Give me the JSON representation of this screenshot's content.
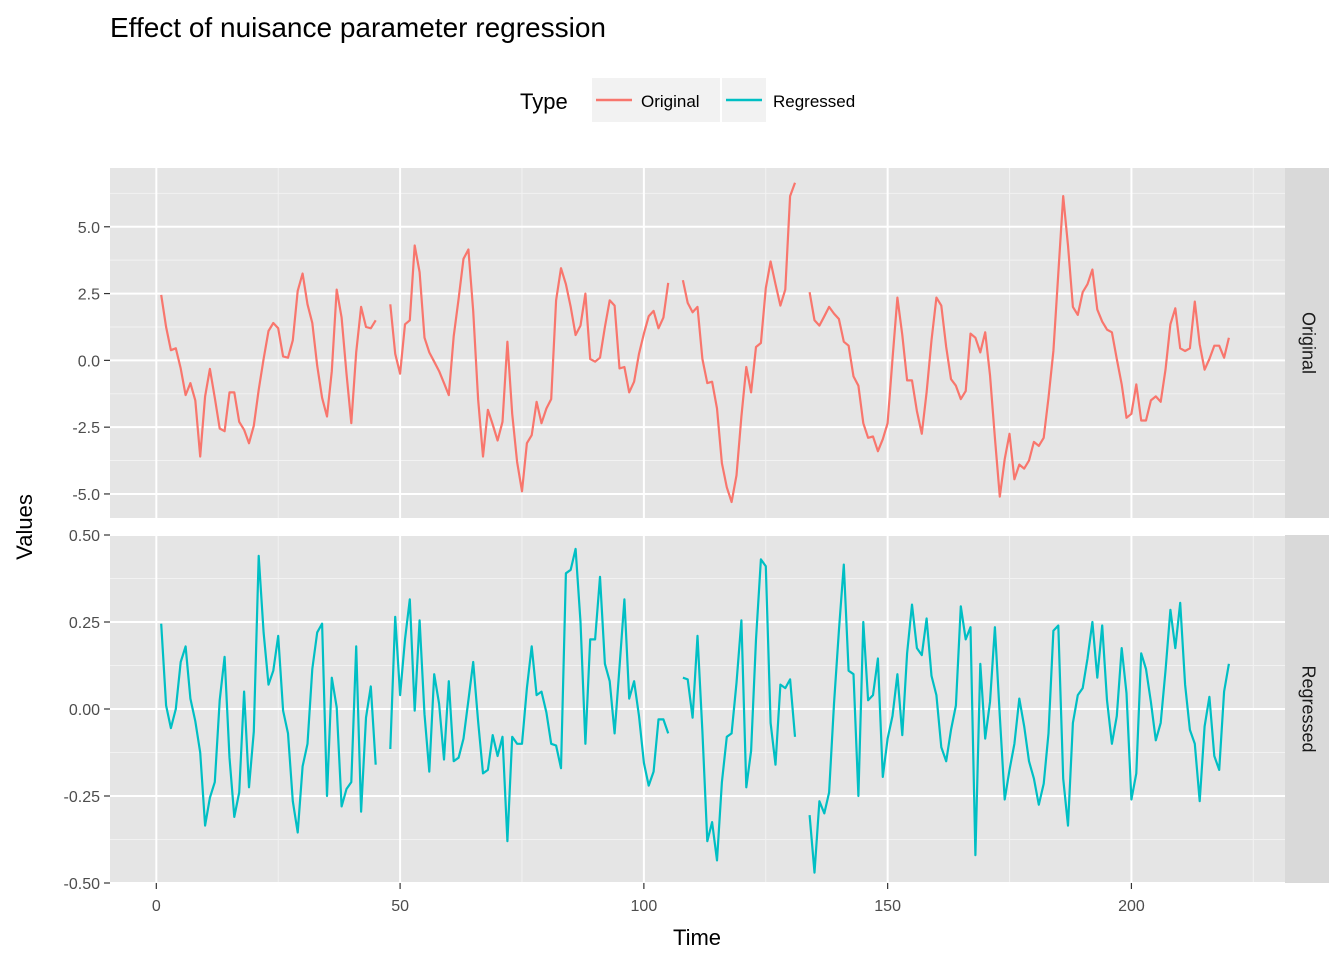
{
  "chart_data": {
    "type": "line",
    "title": "Effect of nuisance parameter regression",
    "xlabel": "Time",
    "ylabel": "Values",
    "legend": {
      "title": "Type",
      "placement": "top",
      "entries": [
        {
          "label": "Original",
          "color": "#F8766D"
        },
        {
          "label": "Regressed",
          "color": "#00BFC4"
        }
      ]
    },
    "grid": true,
    "background": "#e5e5e5",
    "xlim": [
      -9.5,
      231.5
    ],
    "x_ticks": [
      0,
      50,
      100,
      150,
      200
    ],
    "x_tick_labels": [
      "0",
      "50",
      "100",
      "150",
      "200"
    ],
    "panels": [
      {
        "strip_label": "Original",
        "series_name": "Original",
        "color": "#F8766D",
        "ylim": [
          -5.9,
          7.2
        ],
        "y_ticks": [
          -5,
          -2.5,
          0,
          2.5,
          5
        ],
        "y_tick_labels": [
          "-5.0",
          "-2.5",
          "0.0",
          "2.5",
          "5.0"
        ],
        "segments": [
          {
            "x_start": 1,
            "values": [
              2.45,
              1.25,
              0.38,
              0.45,
              -0.3,
              -1.3,
              -0.85,
              -1.5,
              -3.6,
              -1.35,
              -0.32,
              -1.4,
              -2.55,
              -2.65,
              -1.2,
              -1.2,
              -2.3,
              -2.6,
              -3.1,
              -2.45,
              -1.1,
              0.05,
              1.1,
              1.4,
              1.2,
              0.15,
              0.1,
              0.75,
              2.6,
              3.25,
              2.1,
              1.4,
              -0.2,
              -1.4,
              -2.1,
              -0.4,
              2.65,
              1.6,
              -0.5,
              -2.35,
              0.3,
              2.0,
              1.25,
              1.2,
              1.5
            ]
          },
          {
            "x_start": 48,
            "values": [
              2.1,
              0.25,
              -0.5,
              1.35,
              1.5,
              4.3,
              3.3,
              0.85,
              0.3,
              -0.05,
              -0.4,
              -0.85,
              -1.3,
              0.9,
              2.3,
              3.8,
              4.15,
              1.85,
              -1.45,
              -3.6,
              -1.85,
              -2.4,
              -3.0,
              -2.3,
              0.7,
              -2.0,
              -3.8,
              -4.9,
              -3.1,
              -2.8,
              -1.55,
              -2.35,
              -1.8,
              -1.45,
              2.25,
              3.45,
              2.85,
              2.0,
              0.95,
              1.3,
              2.5,
              0.05,
              -0.05,
              0.1,
              1.25,
              2.25,
              2.05,
              -0.3,
              -0.25,
              -1.2,
              -0.8,
              0.25,
              1.0,
              1.65,
              1.85,
              1.2,
              1.6,
              2.9
            ]
          },
          {
            "x_start": 108,
            "values": [
              3.0,
              2.15,
              1.8,
              2.0,
              0.05,
              -0.85,
              -0.8,
              -1.8,
              -3.85,
              -4.75,
              -5.3,
              -4.3,
              -2.1,
              -0.25,
              -1.2,
              0.5,
              0.65,
              2.7,
              3.7,
              2.85,
              2.05,
              2.65,
              6.15,
              6.65
            ]
          },
          {
            "x_start": 134,
            "values": [
              2.55,
              1.5,
              1.3,
              1.65,
              2.0,
              1.75,
              1.55,
              0.7,
              0.55,
              -0.6,
              -0.95,
              -2.35,
              -2.9,
              -2.85,
              -3.4,
              -2.95,
              -2.35,
              0.05,
              2.35,
              0.95,
              -0.75,
              -0.75,
              -1.9,
              -2.75,
              -1.2,
              0.75,
              2.35,
              2.05,
              0.5,
              -0.7,
              -0.95,
              -1.45,
              -1.15,
              1.0,
              0.85,
              0.3,
              1.05,
              -0.55,
              -2.9,
              -5.1,
              -3.7,
              -2.75,
              -4.45,
              -3.9,
              -4.05,
              -3.75,
              -3.05,
              -3.2,
              -2.9,
              -1.4,
              0.35,
              3.25,
              6.15,
              4.3,
              2.0,
              1.7,
              2.55,
              2.85,
              3.4,
              1.9,
              1.45,
              1.15,
              1.05,
              0.05,
              -0.9,
              -2.15,
              -2.0,
              -0.9,
              -2.25,
              -2.25,
              -1.5,
              -1.35,
              -1.55,
              -0.35,
              1.35,
              1.95,
              0.45,
              0.35,
              0.45,
              2.2,
              0.6,
              -0.35,
              0.05,
              0.55,
              0.55,
              0.1,
              0.85
            ]
          }
        ]
      },
      {
        "strip_label": "Regressed",
        "series_name": "Regressed",
        "color": "#00BFC4",
        "ylim": [
          -0.5,
          0.5
        ],
        "y_ticks": [
          -0.5,
          -0.25,
          0,
          0.25,
          0.5
        ],
        "y_tick_labels": [
          "-0.50",
          "-0.25",
          "0.00",
          "0.25",
          "0.50"
        ],
        "segments": [
          {
            "x_start": 1,
            "values": [
              0.245,
              0.01,
              -0.055,
              0.0,
              0.135,
              0.18,
              0.03,
              -0.035,
              -0.125,
              -0.335,
              -0.255,
              -0.21,
              0.025,
              0.15,
              -0.14,
              -0.31,
              -0.24,
              0.05,
              -0.225,
              -0.065,
              0.44,
              0.22,
              0.07,
              0.11,
              0.21,
              -0.005,
              -0.07,
              -0.265,
              -0.355,
              -0.165,
              -0.1,
              0.115,
              0.22,
              0.245,
              -0.25,
              0.09,
              0.005,
              -0.28,
              -0.23,
              -0.21,
              0.18,
              -0.295,
              -0.025,
              0.065,
              -0.16
            ]
          },
          {
            "x_start": 48,
            "values": [
              -0.115,
              0.265,
              0.04,
              0.2,
              0.315,
              -0.005,
              0.255,
              -0.015,
              -0.18,
              0.1,
              0.015,
              -0.145,
              0.08,
              -0.15,
              -0.14,
              -0.085,
              0.025,
              0.135,
              -0.035,
              -0.185,
              -0.175,
              -0.075,
              -0.135,
              -0.08,
              -0.38,
              -0.08,
              -0.1,
              -0.1,
              0.06,
              0.18,
              0.04,
              0.05,
              -0.01,
              -0.1,
              -0.105,
              -0.17,
              0.39,
              0.4,
              0.46,
              0.25,
              -0.1,
              0.2,
              0.2,
              0.38,
              0.13,
              0.08,
              -0.07,
              0.12,
              0.315,
              0.03,
              0.08,
              -0.02,
              -0.155,
              -0.22,
              -0.18,
              -0.03,
              -0.03,
              -0.07
            ]
          },
          {
            "x_start": 108,
            "values": [
              0.09,
              0.085,
              -0.025,
              0.21,
              -0.065,
              -0.38,
              -0.325,
              -0.435,
              -0.21,
              -0.08,
              -0.07,
              0.075,
              0.255,
              -0.225,
              -0.12,
              0.2,
              0.43,
              0.41,
              -0.04,
              -0.16,
              0.07,
              0.06,
              0.085,
              -0.08
            ]
          },
          {
            "x_start": 134,
            "values": [
              -0.305,
              -0.47,
              -0.265,
              -0.3,
              -0.24,
              0.015,
              0.225,
              0.415,
              0.11,
              0.1,
              -0.25,
              0.25,
              0.025,
              0.04,
              0.145,
              -0.195,
              -0.085,
              -0.02,
              0.1,
              -0.075,
              0.16,
              0.3,
              0.175,
              0.155,
              0.26,
              0.095,
              0.04,
              -0.11,
              -0.15,
              -0.06,
              0.01,
              0.295,
              0.2,
              0.235,
              -0.42,
              0.13,
              -0.085,
              0.02,
              0.235,
              -0.02,
              -0.26,
              -0.175,
              -0.1,
              0.03,
              -0.05,
              -0.15,
              -0.2,
              -0.275,
              -0.215,
              -0.07,
              0.225,
              0.24,
              -0.2,
              -0.335,
              -0.04,
              0.04,
              0.06,
              0.145,
              0.25,
              0.09,
              0.24,
              0.025,
              -0.1,
              -0.02,
              0.175,
              0.045,
              -0.26,
              -0.185,
              0.16,
              0.115,
              0.02,
              -0.09,
              -0.04,
              0.11,
              0.285,
              0.175,
              0.305,
              0.07,
              -0.06,
              -0.1,
              -0.265,
              -0.05,
              0.035,
              -0.135,
              -0.175,
              0.05,
              0.13
            ]
          }
        ]
      }
    ]
  }
}
